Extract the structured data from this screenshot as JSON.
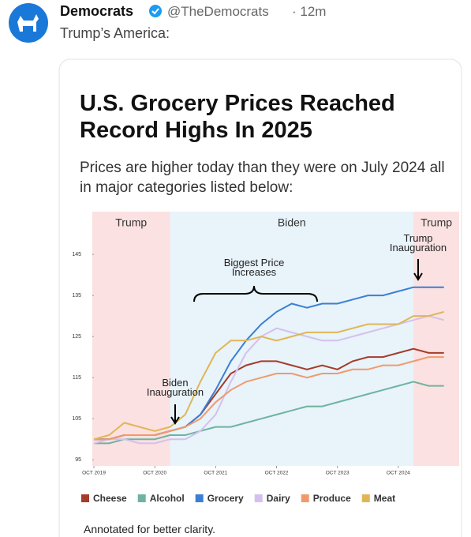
{
  "tweet": {
    "name": "Democrats",
    "handle": "@TheDemocrats",
    "time": "· 12m",
    "text": "Trump’s America:"
  },
  "card": {
    "title": "U.S. Grocery Prices Reached Record Highs In 2025",
    "subtitle": "Prices are higher today than they were on July 2024 all in major categories listed below:",
    "footnote": "Annotated for better clarity."
  },
  "chart_data": {
    "type": "line",
    "regions": [
      {
        "label": "Trump",
        "from": "2019-10",
        "to": "2021-01",
        "color": "#fbe1e1"
      },
      {
        "label": "Biden",
        "from": "2021-01",
        "to": "2025-01",
        "color": "#e8f3fa"
      },
      {
        "label": "Trump",
        "from": "2025-01",
        "to": "2025-10",
        "color": "#fbe1e1"
      }
    ],
    "annotations": [
      "Biden Inauguration",
      "Biggest Price Increases",
      "Trump Inauguration"
    ],
    "x": [
      "2019-10",
      "2020-01",
      "2020-04",
      "2020-07",
      "2020-10",
      "2021-01",
      "2021-04",
      "2021-07",
      "2021-10",
      "2022-01",
      "2022-04",
      "2022-07",
      "2022-10",
      "2023-01",
      "2023-04",
      "2023-07",
      "2023-10",
      "2024-01",
      "2024-04",
      "2024-07",
      "2024-10",
      "2025-01",
      "2025-04",
      "2025-07"
    ],
    "xlim": [
      "2019-10",
      "2025-10"
    ],
    "xticks": [
      {
        "value": "2019-10",
        "label": "OCT 2019"
      },
      {
        "value": "2020-10",
        "label": "OCT 2020"
      },
      {
        "value": "2021-10",
        "label": "OCT 2021"
      },
      {
        "value": "2022-10",
        "label": "OCT 2022"
      },
      {
        "value": "2023-10",
        "label": "OCT 2023"
      },
      {
        "value": "2024-10",
        "label": "OCT 2024"
      }
    ],
    "ylim": [
      93.5,
      155.4
    ],
    "yticks": [
      95,
      105,
      115,
      125,
      135,
      145
    ],
    "series": [
      {
        "name": "Cheese",
        "color": "#a53b2b",
        "values": [
          100,
          100,
          101,
          101,
          101,
          102,
          103,
          106,
          111,
          116,
          118,
          119,
          119,
          118,
          117,
          118,
          117,
          119,
          120,
          120,
          121,
          122,
          121,
          121
        ]
      },
      {
        "name": "Alcohol",
        "color": "#6fb3a0",
        "values": [
          99,
          99,
          100,
          100,
          100,
          101,
          101,
          102,
          103,
          103,
          104,
          105,
          106,
          107,
          108,
          108,
          109,
          110,
          111,
          112,
          113,
          114,
          113,
          113
        ]
      },
      {
        "name": "Grocery",
        "color": "#3b7fd4",
        "values": [
          100,
          100,
          101,
          101,
          101,
          102,
          103,
          106,
          112,
          119,
          124,
          128,
          131,
          133,
          132,
          133,
          133,
          134,
          135,
          135,
          136,
          137,
          137,
          137
        ]
      },
      {
        "name": "Dairy",
        "color": "#d4c0ee",
        "values": [
          99,
          100,
          100,
          99,
          99,
          100,
          100,
          102,
          106,
          114,
          121,
          125,
          127,
          126,
          125,
          124,
          124,
          125,
          126,
          127,
          128,
          129,
          130,
          129
        ]
      },
      {
        "name": "Produce",
        "color": "#f09a6c",
        "values": [
          100,
          100,
          101,
          101,
          101,
          102,
          103,
          105,
          109,
          112,
          114,
          115,
          116,
          116,
          115,
          116,
          116,
          117,
          117,
          118,
          118,
          119,
          120,
          120
        ]
      },
      {
        "name": "Meat",
        "color": "#e0b655",
        "values": [
          100,
          101,
          104,
          103,
          102,
          103,
          106,
          114,
          121,
          124,
          124,
          125,
          124,
          125,
          126,
          126,
          126,
          127,
          128,
          128,
          128,
          130,
          130,
          131
        ]
      }
    ]
  }
}
